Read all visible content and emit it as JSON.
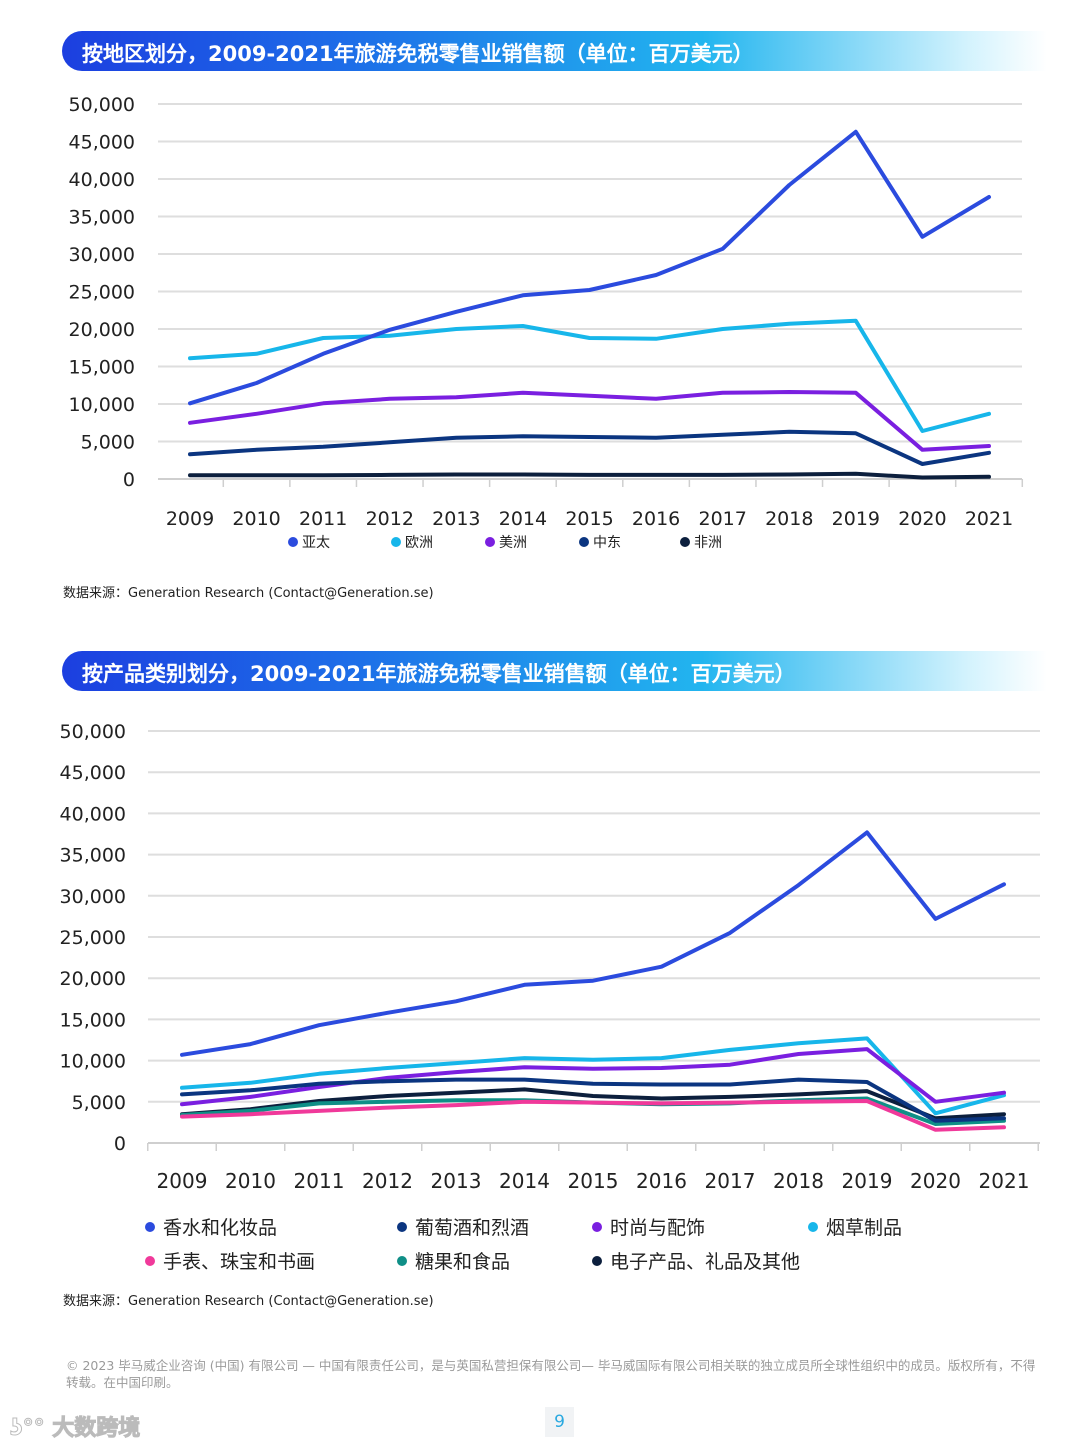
{
  "chart_data": [
    {
      "type": "line",
      "title": "按地区划分，2009-2021年旅游免税零售业销售额（单位：百万美元）",
      "source": "数据来源：Generation Research (Contact@Generation.se)",
      "x": [
        "2009",
        "2010",
        "2011",
        "2012",
        "2013",
        "2014",
        "2015",
        "2016",
        "2017",
        "2018",
        "2019",
        "2020",
        "2021"
      ],
      "ylim": [
        0,
        50000
      ],
      "yticks": [
        "0",
        "5,000",
        "10,000",
        "15,000",
        "20,000",
        "25,000",
        "30,000",
        "35,000",
        "40,000",
        "45,000",
        "50,000"
      ],
      "grid": true,
      "legend_position": "bottom",
      "series": [
        {
          "name": "亚太",
          "color": "#2b4bde",
          "values": [
            10100,
            12800,
            16700,
            19900,
            22300,
            24500,
            25200,
            27200,
            30700,
            39200,
            46300,
            32300,
            37600
          ]
        },
        {
          "name": "欧洲",
          "color": "#17b6ea",
          "values": [
            16100,
            16700,
            18800,
            19100,
            20000,
            20400,
            18800,
            18700,
            20000,
            20700,
            21100,
            6400,
            8700
          ]
        },
        {
          "name": "美洲",
          "color": "#7a1fe0",
          "values": [
            7500,
            8700,
            10100,
            10700,
            10900,
            11500,
            11100,
            10700,
            11500,
            11600,
            11500,
            3900,
            4400
          ]
        },
        {
          "name": "中东",
          "color": "#0b3580",
          "values": [
            3300,
            3900,
            4300,
            4900,
            5500,
            5700,
            5600,
            5500,
            5900,
            6300,
            6100,
            2000,
            3500
          ]
        },
        {
          "name": "非洲",
          "color": "#0c1f3d",
          "values": [
            500,
            500,
            500,
            550,
            600,
            600,
            550,
            550,
            550,
            600,
            700,
            200,
            300
          ]
        }
      ]
    },
    {
      "type": "line",
      "title": "按产品类别划分，2009-2021年旅游免税零售业销售额（单位：百万美元）",
      "source": "数据来源：Generation Research (Contact@Generation.se)",
      "x": [
        "2009",
        "2010",
        "2011",
        "2012",
        "2013",
        "2014",
        "2015",
        "2016",
        "2017",
        "2018",
        "2019",
        "2020",
        "2021"
      ],
      "ylim": [
        0,
        50000
      ],
      "yticks": [
        "0",
        "5,000",
        "10,000",
        "15,000",
        "20,000",
        "25,000",
        "30,000",
        "35,000",
        "40,000",
        "45,000",
        "50,000"
      ],
      "grid": true,
      "legend_position": "bottom",
      "series": [
        {
          "name": "香水和化妆品",
          "color": "#2b4bde",
          "values": [
            10700,
            12000,
            14300,
            15800,
            17200,
            19200,
            19700,
            21400,
            25500,
            31300,
            37700,
            27200,
            31400
          ]
        },
        {
          "name": "葡萄酒和烈酒",
          "color": "#0b3580",
          "values": [
            5900,
            6400,
            7200,
            7500,
            7700,
            7700,
            7200,
            7100,
            7100,
            7700,
            7400,
            2700,
            3000
          ]
        },
        {
          "name": "时尚与配饰",
          "color": "#7a1fe0",
          "values": [
            4700,
            5600,
            6800,
            7900,
            8600,
            9200,
            9000,
            9100,
            9500,
            10800,
            11400,
            5000,
            6100
          ]
        },
        {
          "name": "烟草制品",
          "color": "#17b6ea",
          "values": [
            6700,
            7300,
            8400,
            9100,
            9700,
            10300,
            10100,
            10300,
            11300,
            12100,
            12700,
            3600,
            5800
          ]
        },
        {
          "name": "手表、珠宝和书画",
          "color": "#f0399a",
          "values": [
            3200,
            3500,
            3900,
            4300,
            4600,
            5000,
            4900,
            4800,
            4900,
            5000,
            5100,
            1600,
            1900
          ]
        },
        {
          "name": "糖果和食品",
          "color": "#0f8f87",
          "values": [
            3400,
            3900,
            4800,
            5000,
            5200,
            5200,
            4900,
            4700,
            4800,
            5200,
            5400,
            2300,
            2700
          ]
        },
        {
          "name": "电子产品、礼品及其他",
          "color": "#0c1f3d",
          "values": [
            3500,
            4100,
            5100,
            5700,
            6100,
            6500,
            5700,
            5400,
            5600,
            5900,
            6300,
            3000,
            3500
          ]
        }
      ]
    }
  ],
  "footer": {
    "copyright": "© 2023 毕马威企业咨询 (中国) 有限公司 — 中国有限责任公司，是与英国私营担保有限公司— 毕马威国际有限公司相关联的独立成员所全球性组织中的成员。版权所有，不得转载。在中国印刷。",
    "watermark": "大数跨境",
    "page_number": "9"
  }
}
